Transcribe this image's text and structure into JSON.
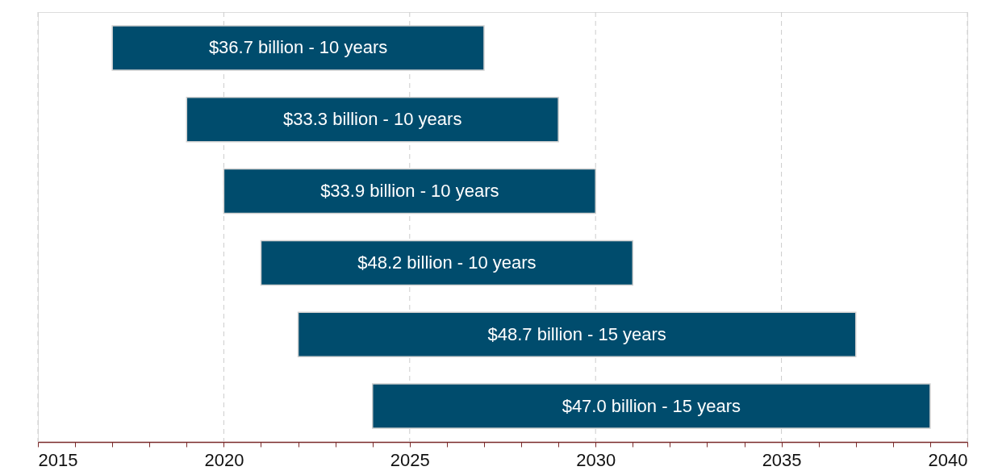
{
  "chart_data": {
    "type": "bar",
    "orientation": "horizontal",
    "categories": [
      null,
      null,
      null,
      null,
      null,
      null
    ],
    "base": [
      2017,
      2019,
      2020,
      2021,
      2022,
      2024
    ],
    "values": [
      10,
      10,
      10,
      10,
      15,
      15
    ],
    "annotations": [
      "$36.7 billion - 10 years",
      "$33.3 billion - 10 years",
      "$33.9 billion - 10 years",
      "$48.2 billion - 10 years",
      "$48.7 billion - 15 years",
      "$47.0 billion - 15 years"
    ],
    "color": "#004c6d",
    "xlim": [
      2015,
      2040
    ],
    "xticks": [
      2015,
      {
        "value": 2016,
        "label": null
      },
      {
        "value": 2017,
        "label": null
      },
      {
        "value": 2018,
        "label": null
      },
      {
        "value": 2019,
        "label": null
      },
      2020,
      {
        "value": 2021,
        "label": null
      },
      {
        "value": 2022,
        "label": null
      },
      {
        "value": 2023,
        "label": null
      },
      {
        "value": 2024,
        "label": null
      },
      2025,
      {
        "value": 2026,
        "label": null
      },
      {
        "value": 2027,
        "label": null
      },
      {
        "value": 2028,
        "label": null
      },
      {
        "value": 2029,
        "label": null
      },
      2030,
      {
        "value": 2031,
        "label": null
      },
      {
        "value": 2032,
        "label": null
      },
      {
        "value": 2033,
        "label": null
      },
      {
        "value": 2034,
        "label": null
      },
      2035,
      {
        "value": 2036,
        "label": null
      },
      {
        "value": 2037,
        "label": null
      },
      {
        "value": 2038,
        "label": null
      },
      {
        "value": 2039,
        "label": null
      },
      2040
    ],
    "grid": "x"
  }
}
